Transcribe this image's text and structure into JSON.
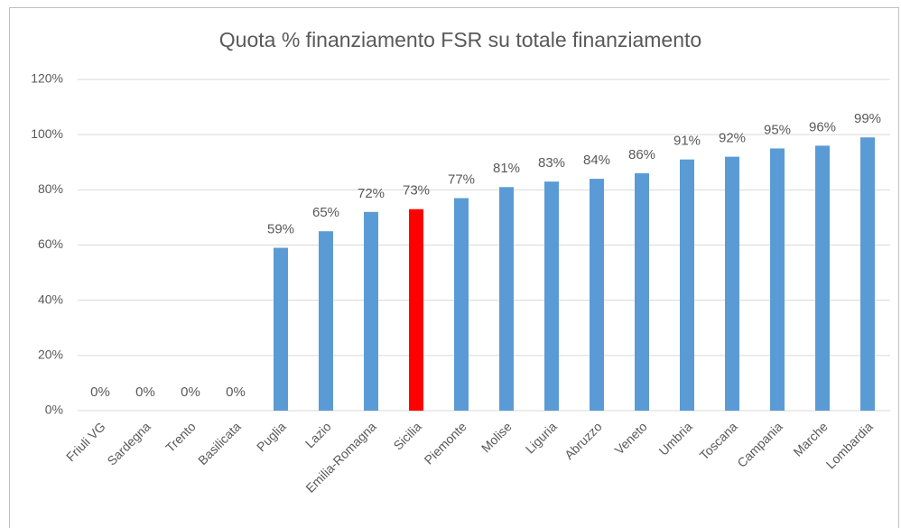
{
  "chart_data": {
    "type": "bar",
    "title": "Quota % finanziamento FSR su totale finanziamento",
    "categories": [
      "Friuli VG",
      "Sardegna",
      "Trento",
      "Basilicata",
      "Puglia",
      "Lazio",
      "Emilia-Romagna",
      "Sicilia",
      "Piemonte",
      "Molise",
      "Liguria",
      "Abruzzo",
      "Veneto",
      "Umbria",
      "Toscana",
      "Campania",
      "Marche",
      "Lombardia"
    ],
    "values": [
      0,
      0,
      0,
      0,
      59,
      65,
      72,
      73,
      77,
      81,
      83,
      84,
      86,
      91,
      92,
      95,
      96,
      99
    ],
    "value_labels": [
      "0%",
      "0%",
      "0%",
      "0%",
      "59%",
      "65%",
      "72%",
      "73%",
      "77%",
      "81%",
      "83%",
      "84%",
      "86%",
      "91%",
      "92%",
      "95%",
      "96%",
      "99%"
    ],
    "colors": [
      "#5b9bd5",
      "#5b9bd5",
      "#5b9bd5",
      "#5b9bd5",
      "#5b9bd5",
      "#5b9bd5",
      "#5b9bd5",
      "#ff0000",
      "#5b9bd5",
      "#5b9bd5",
      "#5b9bd5",
      "#5b9bd5",
      "#5b9bd5",
      "#5b9bd5",
      "#5b9bd5",
      "#5b9bd5",
      "#5b9bd5",
      "#5b9bd5"
    ],
    "ylim": [
      0,
      120
    ],
    "yticks": [
      {
        "value": 0,
        "label": "0%"
      },
      {
        "value": 20,
        "label": "20%"
      },
      {
        "value": 40,
        "label": "40%"
      },
      {
        "value": 60,
        "label": "60%"
      },
      {
        "value": 80,
        "label": "80%"
      },
      {
        "value": 100,
        "label": "100%"
      },
      {
        "value": 120,
        "label": "120%"
      }
    ],
    "grid": true
  }
}
